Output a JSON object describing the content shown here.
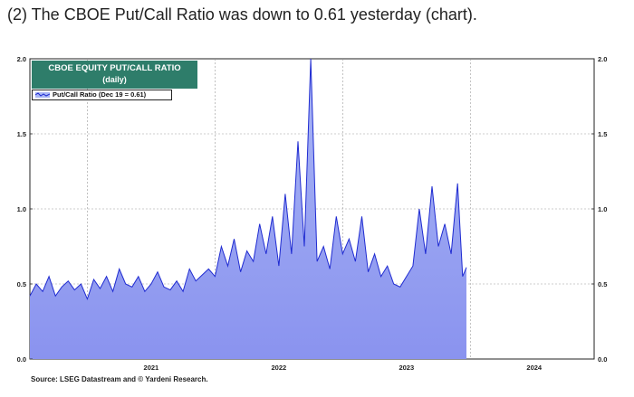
{
  "headline": "(2) The CBOE Put/Call Ratio was down to 0.61 yesterday (chart).",
  "source": "Source: LSEG Datastream and © Yardeni Research.",
  "chart_data": {
    "type": "area",
    "title": "CBOE EQUITY PUT/CALL RATIO",
    "subtitle": "(daily)",
    "legend": "Put/Call Ratio (Dec 19 = 0.61)",
    "x_axis": {
      "start": 2020.55,
      "end": 2024.97,
      "ticks": [
        {
          "label": "2021",
          "pos": 2021.5
        },
        {
          "label": "2022",
          "pos": 2022.5
        },
        {
          "label": "2023",
          "pos": 2023.5
        },
        {
          "label": "2024",
          "pos": 2024.5
        }
      ]
    },
    "ylim": [
      0.0,
      2.0
    ],
    "y_ticks": [
      "0.0",
      "0.5",
      "1.0",
      "1.5",
      "2.0"
    ],
    "grid": true,
    "series_color": "#1f2bd1",
    "fill_top": "#a9b6f5",
    "fill_bottom": "#8a93ef",
    "series": [
      {
        "name": "Put/Call Ratio",
        "x": [
          2020.55,
          2020.6,
          2020.65,
          2020.7,
          2020.75,
          2020.8,
          2020.85,
          2020.9,
          2020.95,
          2021.0,
          2021.05,
          2021.1,
          2021.15,
          2021.2,
          2021.25,
          2021.3,
          2021.35,
          2021.4,
          2021.45,
          2021.5,
          2021.55,
          2021.6,
          2021.65,
          2021.7,
          2021.75,
          2021.8,
          2021.85,
          2021.9,
          2021.95,
          2022.0,
          2022.05,
          2022.1,
          2022.15,
          2022.2,
          2022.25,
          2022.3,
          2022.35,
          2022.4,
          2022.45,
          2022.5,
          2022.55,
          2022.6,
          2022.65,
          2022.7,
          2022.75,
          2022.8,
          2022.85,
          2022.9,
          2022.95,
          2023.0,
          2023.05,
          2023.1,
          2023.15,
          2023.2,
          2023.25,
          2023.3,
          2023.35,
          2023.4,
          2023.45,
          2023.5,
          2023.55,
          2023.6,
          2023.65,
          2023.7,
          2023.75,
          2023.8,
          2023.85,
          2023.9,
          2023.94,
          2023.97
        ],
        "y": [
          0.42,
          0.5,
          0.45,
          0.55,
          0.42,
          0.48,
          0.52,
          0.46,
          0.5,
          0.4,
          0.53,
          0.47,
          0.55,
          0.45,
          0.6,
          0.5,
          0.48,
          0.55,
          0.45,
          0.5,
          0.58,
          0.48,
          0.46,
          0.52,
          0.45,
          0.6,
          0.52,
          0.56,
          0.6,
          0.55,
          0.75,
          0.62,
          0.8,
          0.58,
          0.72,
          0.65,
          0.9,
          0.7,
          0.95,
          0.62,
          1.1,
          0.7,
          1.45,
          0.75,
          2.0,
          0.65,
          0.75,
          0.6,
          0.95,
          0.7,
          0.8,
          0.65,
          0.95,
          0.58,
          0.7,
          0.55,
          0.62,
          0.5,
          0.48,
          0.55,
          0.62,
          1.0,
          0.7,
          1.15,
          0.75,
          0.9,
          0.7,
          1.17,
          0.55,
          0.61
        ]
      }
    ]
  }
}
